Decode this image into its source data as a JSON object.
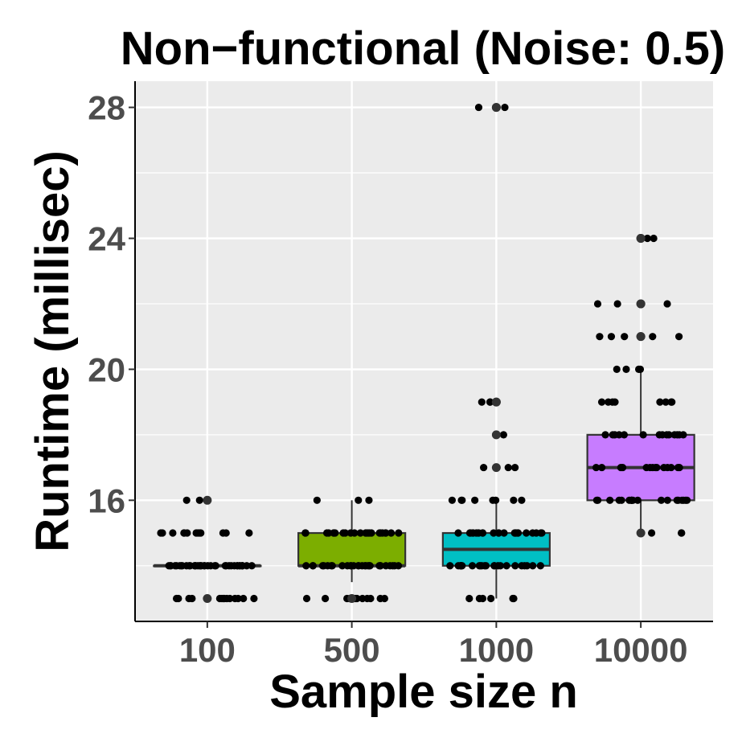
{
  "chart_data": {
    "type": "box",
    "title": "Non−functional (Noise: 0.5)",
    "xlabel": "Sample size n",
    "ylabel": "Runtime (millisec)",
    "categories": [
      "100",
      "500",
      "1000",
      "10000"
    ],
    "ylim": [
      12.3,
      28.8
    ],
    "yticks": [
      16,
      20,
      24,
      28
    ],
    "ytick_labels": [
      "16",
      "20",
      "24",
      "28"
    ],
    "grid": true,
    "legend": "none",
    "panel_background": "#ebebeb",
    "grid_color": "#ffffff",
    "boxes": [
      {
        "category": "100",
        "fill": "#f8766d",
        "q1": 14,
        "median": 14,
        "q3": 14,
        "whisker_low": 14,
        "whisker_high": 14
      },
      {
        "category": "500",
        "fill": "#7cae00",
        "q1": 14,
        "median": 14,
        "q3": 15,
        "whisker_low": 13.5,
        "whisker_high": 16
      },
      {
        "category": "1000",
        "fill": "#00bfc4",
        "q1": 14,
        "median": 14.5,
        "q3": 15,
        "whisker_low": 13,
        "whisker_high": 16
      },
      {
        "category": "10000",
        "fill": "#c77cff",
        "q1": 16,
        "median": 17,
        "q3": 18,
        "whisker_low": 15,
        "whisker_high": 20
      }
    ],
    "outliers": [
      {
        "category": "100",
        "values": [
          13,
          16
        ]
      },
      {
        "category": "500",
        "values": [
          13
        ]
      },
      {
        "category": "1000",
        "values": [
          17,
          18,
          19,
          19,
          28,
          28
        ]
      },
      {
        "category": "10000",
        "values": [
          15,
          21,
          21,
          22,
          22,
          24,
          24
        ]
      }
    ],
    "jitter_points": [
      {
        "category": "100",
        "values": [
          13,
          13,
          13,
          13,
          13,
          13,
          13,
          13,
          13,
          13,
          13,
          13,
          13,
          13,
          14,
          14,
          14,
          14,
          14,
          14,
          14,
          14,
          14,
          14,
          14,
          14,
          14,
          14,
          14,
          14,
          14,
          14,
          14,
          14,
          14,
          14,
          14,
          14,
          14,
          14,
          14,
          14,
          14,
          14,
          14,
          14,
          14,
          14,
          14,
          14,
          14,
          14,
          15,
          15,
          15,
          15,
          15,
          15,
          15,
          15,
          15,
          15,
          15,
          15,
          15,
          16,
          16
        ]
      },
      {
        "category": "500",
        "values": [
          13,
          13,
          13,
          13,
          13,
          13,
          13,
          13,
          13,
          13,
          13,
          13,
          14,
          14,
          14,
          14,
          14,
          14,
          14,
          14,
          14,
          14,
          14,
          14,
          14,
          14,
          14,
          14,
          14,
          14,
          14,
          14,
          14,
          14,
          14,
          14,
          14,
          14,
          14,
          14,
          14,
          15,
          15,
          15,
          15,
          15,
          15,
          15,
          15,
          15,
          15,
          15,
          15,
          15,
          15,
          15,
          15,
          15,
          15,
          15,
          15,
          15,
          15,
          15,
          15,
          16,
          16,
          16
        ]
      },
      {
        "category": "1000",
        "values": [
          13,
          13,
          13,
          13,
          13,
          13,
          14,
          14,
          14,
          14,
          14,
          14,
          14,
          14,
          14,
          14,
          14,
          14,
          14,
          14,
          14,
          14,
          14,
          14,
          14,
          14,
          14,
          14,
          14,
          14,
          15,
          15,
          15,
          15,
          15,
          15,
          15,
          15,
          15,
          15,
          15,
          15,
          15,
          15,
          15,
          15,
          15,
          15,
          15,
          15,
          15,
          15,
          15,
          15,
          16,
          16,
          16,
          16,
          16,
          16,
          16,
          16,
          17,
          17,
          17,
          18,
          19,
          19,
          19,
          28,
          28
        ]
      },
      {
        "category": "10000",
        "values": [
          15,
          15,
          15,
          16,
          16,
          16,
          16,
          16,
          16,
          16,
          16,
          16,
          16,
          16,
          16,
          16,
          16,
          16,
          16,
          16,
          16,
          16,
          17,
          17,
          17,
          17,
          17,
          17,
          17,
          17,
          17,
          17,
          17,
          17,
          17,
          17,
          18,
          18,
          18,
          18,
          18,
          18,
          18,
          18,
          18,
          18,
          18,
          18,
          18,
          18,
          19,
          19,
          19,
          19,
          19,
          19,
          19,
          19,
          20,
          20,
          20,
          20,
          21,
          21,
          21,
          21,
          21,
          22,
          22,
          22,
          22,
          24,
          24
        ]
      }
    ]
  }
}
